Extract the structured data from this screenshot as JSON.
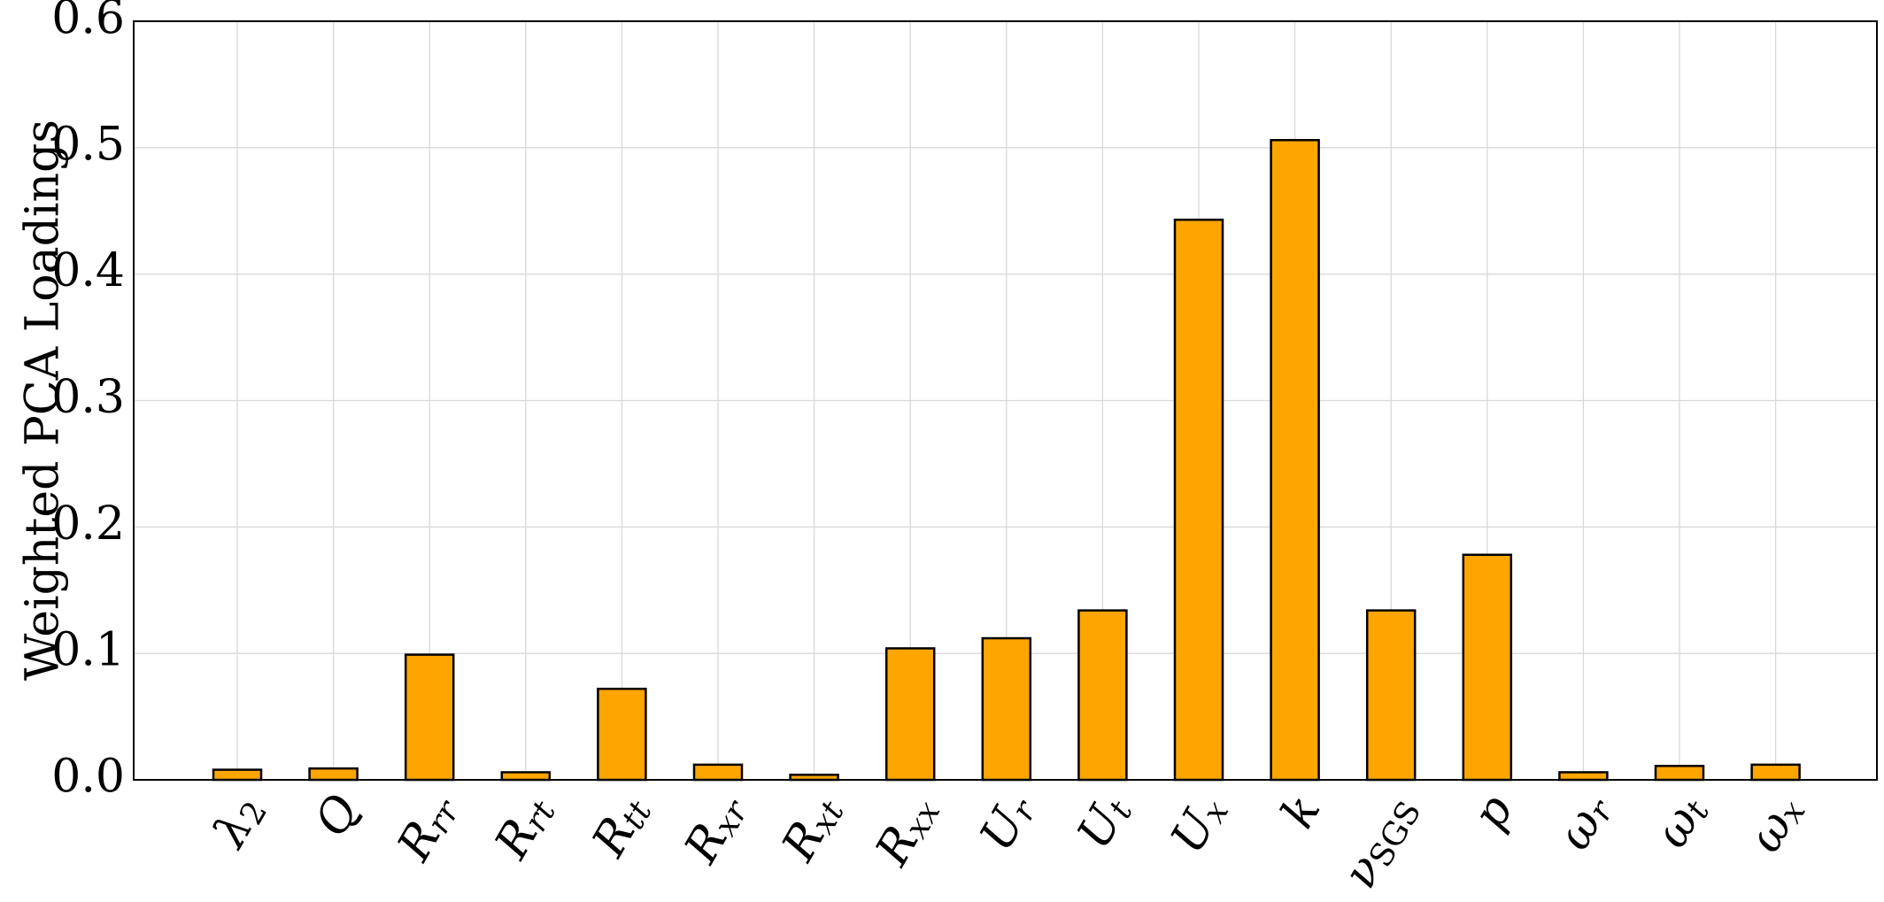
{
  "chart_data": {
    "type": "bar",
    "ylabel": "Weighted PCA Loadings",
    "categories": [
      "λ2",
      "Q",
      "Rrr",
      "Rrt",
      "Rtt",
      "Rxr",
      "Rxt",
      "Rxx",
      "Ur",
      "Ut",
      "Ux",
      "k",
      "νSGS",
      "p",
      "ωr",
      "ωt",
      "ωx"
    ],
    "values": [
      0.008,
      0.009,
      0.099,
      0.006,
      0.072,
      0.012,
      0.004,
      0.104,
      0.112,
      0.134,
      0.443,
      0.506,
      0.134,
      0.178,
      0.006,
      0.011,
      0.012
    ],
    "color": "#ffa500",
    "ylim": [
      0,
      0.6
    ],
    "yticks": [
      {
        "value": 0,
        "label": "0.0"
      },
      0.1,
      0.2,
      0.3,
      0.4,
      0.5,
      0.6
    ],
    "grid": true
  }
}
